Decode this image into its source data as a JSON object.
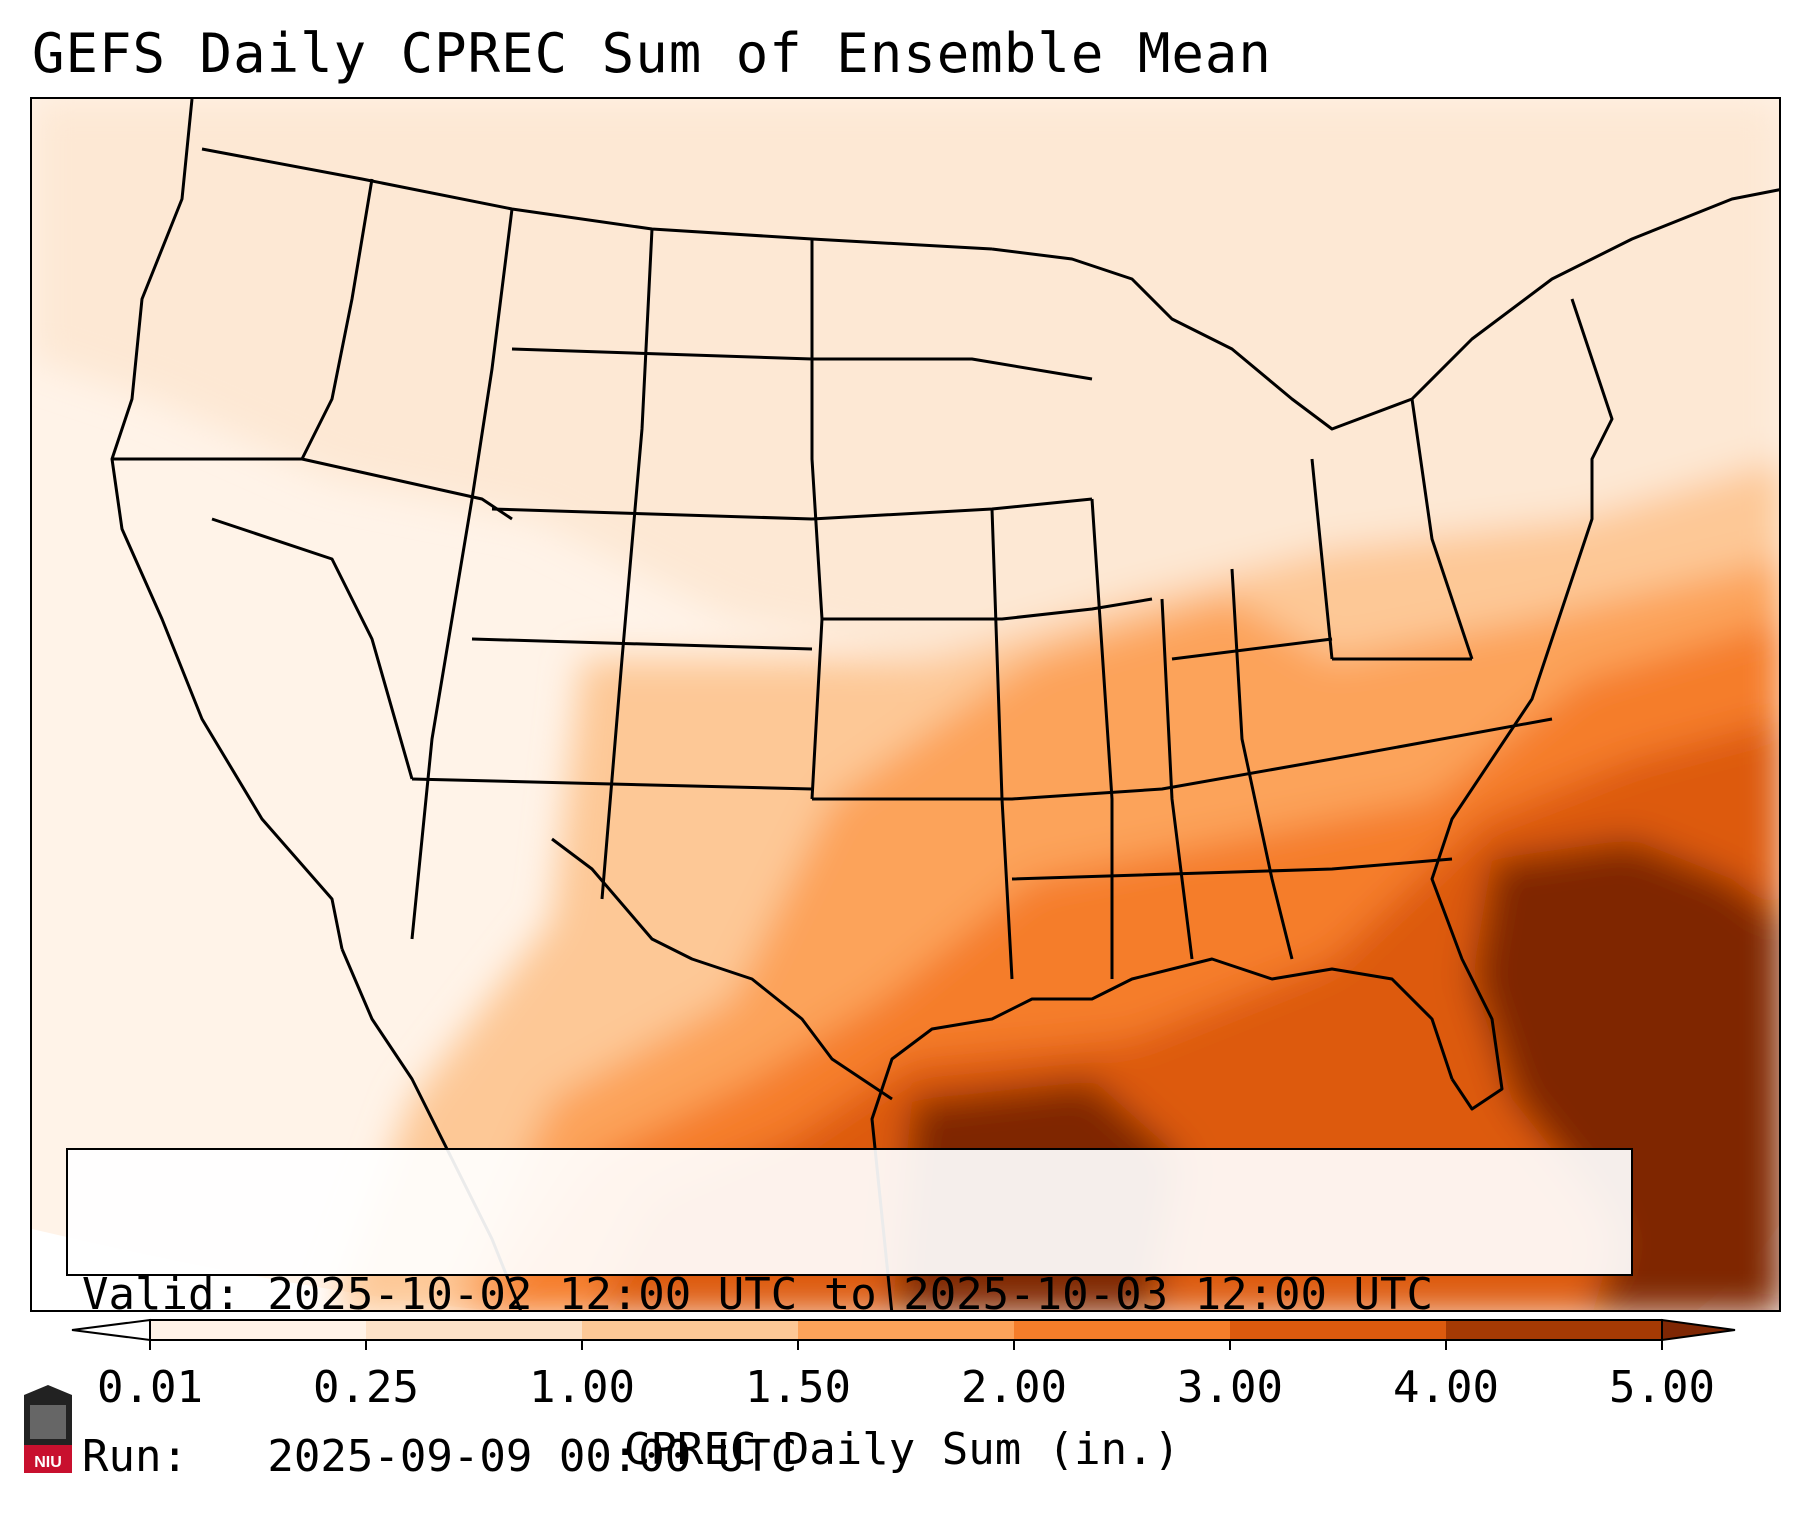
{
  "title": "GEFS Daily CPREC Sum of Ensemble Mean",
  "info": {
    "valid": "Valid: 2025-10-02 12:00 UTC to 2025-10-03 12:00 UTC",
    "run": "Run:   2025-09-09 00:00 UTC"
  },
  "colorbar": {
    "title": "CPREC Daily Sum (in.)",
    "ticks": [
      "0.01",
      "0.25",
      "1.00",
      "1.50",
      "2.00",
      "3.00",
      "4.00",
      "5.00"
    ],
    "colors": [
      "#fff3e8",
      "#fde2c8",
      "#fdc896",
      "#fca35a",
      "#f57d2a",
      "#dd5a0e",
      "#a53a04",
      "#7f2704"
    ],
    "extend": "both"
  },
  "logo": {
    "text": "NIU"
  }
}
